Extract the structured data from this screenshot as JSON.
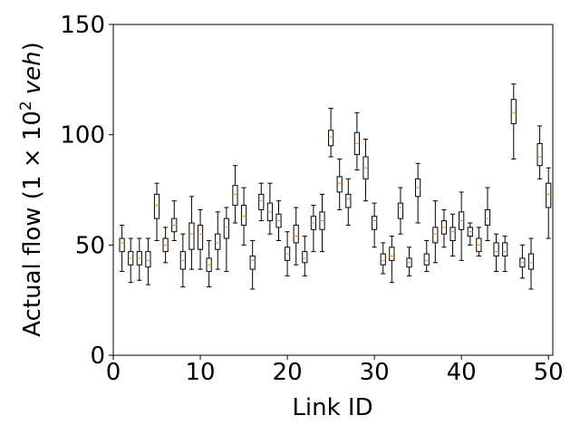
{
  "chart_data": {
    "type": "box",
    "xlabel": "Link ID",
    "ylabel": {
      "prefix": "Actual flow (1 × 10",
      "exponent": "2",
      "unit": "veh",
      "suffix": ")"
    },
    "x": [
      1,
      2,
      3,
      4,
      5,
      6,
      7,
      8,
      9,
      10,
      11,
      12,
      13,
      14,
      15,
      16,
      17,
      18,
      19,
      20,
      21,
      22,
      23,
      24,
      25,
      26,
      27,
      28,
      29,
      30,
      31,
      32,
      33,
      34,
      35,
      36,
      37,
      38,
      39,
      40,
      41,
      42,
      43,
      44,
      45,
      46,
      47,
      48,
      49,
      50
    ],
    "low": [
      38,
      33,
      34,
      32,
      52,
      42,
      52,
      31,
      39,
      39,
      31,
      39,
      38,
      60,
      50,
      30,
      61,
      55,
      52,
      36,
      41,
      36,
      47,
      47,
      90,
      66,
      59,
      84,
      70,
      49,
      37,
      33,
      55,
      36,
      60,
      38,
      42,
      49,
      45,
      43,
      50,
      45,
      52,
      38,
      38,
      89,
      35,
      30,
      80,
      53
    ],
    "q1": [
      47,
      41,
      41,
      40,
      62,
      47,
      56,
      39,
      48,
      48,
      38,
      48,
      53,
      68,
      59,
      39,
      66,
      61,
      58,
      43,
      51,
      42,
      57,
      57,
      95,
      74,
      67,
      91,
      80,
      57,
      41,
      43,
      62,
      40,
      72,
      41,
      51,
      55,
      52,
      57,
      54,
      47,
      59,
      45,
      45,
      105,
      40,
      39,
      86,
      67
    ],
    "median": [
      51,
      44,
      44,
      43,
      68,
      50,
      59,
      43,
      55,
      55,
      41,
      51,
      58,
      73,
      63,
      43,
      70,
      65,
      61,
      46,
      54,
      44,
      60,
      61,
      99,
      78,
      71,
      96,
      85,
      61,
      43,
      45,
      67,
      42,
      76,
      43,
      55,
      58,
      56,
      61,
      56,
      50,
      62,
      47,
      47,
      110,
      42,
      42,
      90,
      73
    ],
    "q3": [
      53,
      47,
      47,
      47,
      73,
      53,
      62,
      47,
      60,
      59,
      44,
      55,
      62,
      77,
      68,
      45,
      73,
      69,
      64,
      49,
      59,
      47,
      63,
      65,
      102,
      81,
      73,
      101,
      90,
      63,
      46,
      49,
      69,
      44,
      80,
      46,
      58,
      61,
      58,
      65,
      58,
      53,
      66,
      51,
      51,
      116,
      44,
      46,
      96,
      78
    ],
    "high": [
      59,
      53,
      53,
      53,
      78,
      58,
      70,
      55,
      72,
      66,
      52,
      65,
      67,
      86,
      76,
      52,
      78,
      78,
      70,
      56,
      67,
      54,
      68,
      73,
      112,
      89,
      80,
      110,
      98,
      69,
      51,
      54,
      76,
      49,
      87,
      52,
      70,
      66,
      64,
      74,
      60,
      58,
      76,
      55,
      54,
      123,
      50,
      53,
      104,
      85
    ],
    "box_color": "#000000",
    "median_color": "#ff7f0e",
    "xlim": [
      0,
      50.5
    ],
    "ylim": [
      0,
      150
    ],
    "xticks": [
      0,
      10,
      20,
      30,
      40,
      50
    ],
    "yticks": [
      0,
      50,
      100,
      150
    ]
  }
}
